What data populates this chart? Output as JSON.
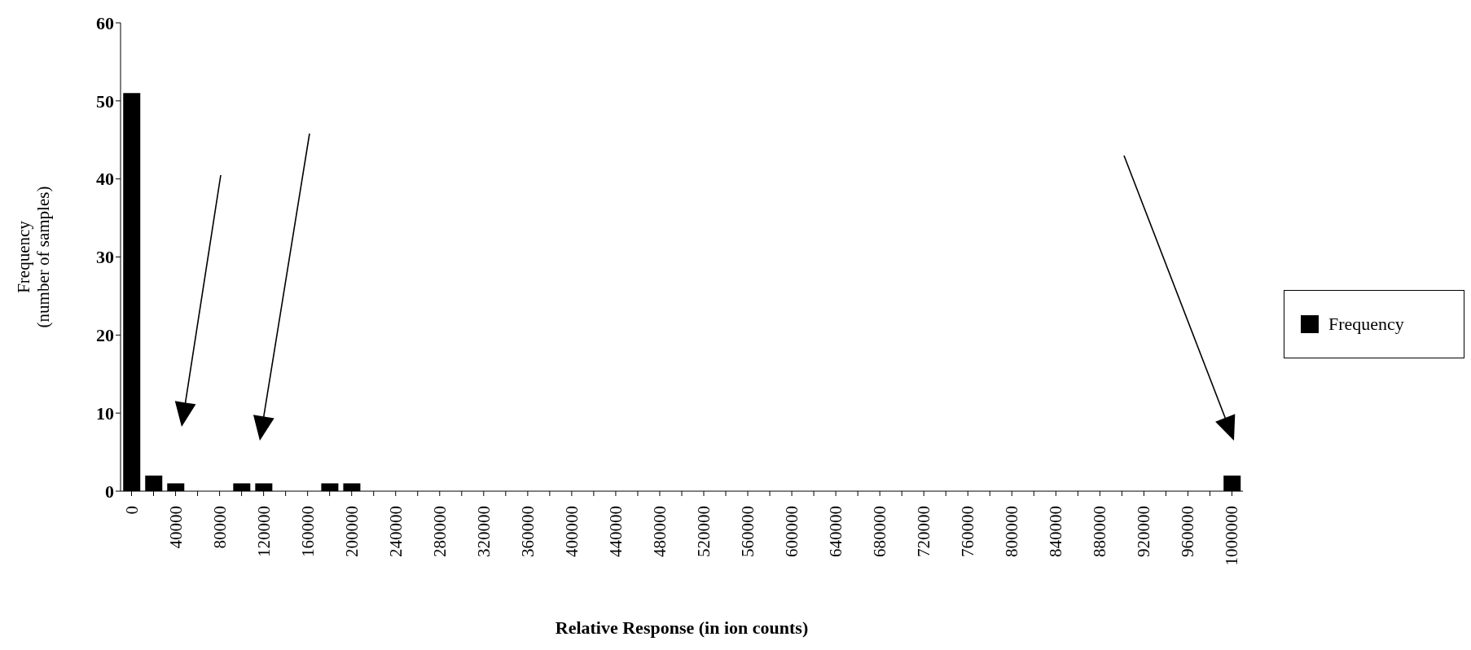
{
  "chart_data": {
    "type": "bar",
    "xlabel": "Relative Response (in ion counts)",
    "ylabel": "Frequency\n(number of samples)",
    "categories": [
      "0",
      null,
      "40000",
      null,
      "80000",
      null,
      "120000",
      null,
      "160000",
      null,
      "200000",
      null,
      "240000",
      null,
      "280000",
      null,
      "320000",
      null,
      "360000",
      null,
      "400000",
      null,
      "440000",
      null,
      "480000",
      null,
      "520000",
      null,
      "560000",
      null,
      "600000",
      null,
      "640000",
      null,
      "680000",
      null,
      "720000",
      null,
      "760000",
      null,
      "800000",
      null,
      "840000",
      null,
      "880000",
      null,
      "920000",
      null,
      "960000",
      null,
      "1000000"
    ],
    "series": [
      {
        "name": "Frequency",
        "color": "#000000",
        "values": [
          51,
          2,
          1,
          0,
          0,
          1,
          1,
          0,
          0,
          1,
          1,
          0,
          0,
          0,
          0,
          0,
          0,
          0,
          0,
          0,
          0,
          0,
          0,
          0,
          0,
          0,
          0,
          0,
          0,
          0,
          0,
          0,
          0,
          0,
          0,
          0,
          0,
          0,
          0,
          0,
          0,
          0,
          0,
          0,
          0,
          0,
          0,
          0,
          0,
          0,
          2
        ]
      }
    ],
    "ylim": [
      0,
      60
    ],
    "yticks": [
      0,
      10,
      20,
      30,
      40,
      50,
      60
    ],
    "grid": false,
    "legend": "right"
  }
}
